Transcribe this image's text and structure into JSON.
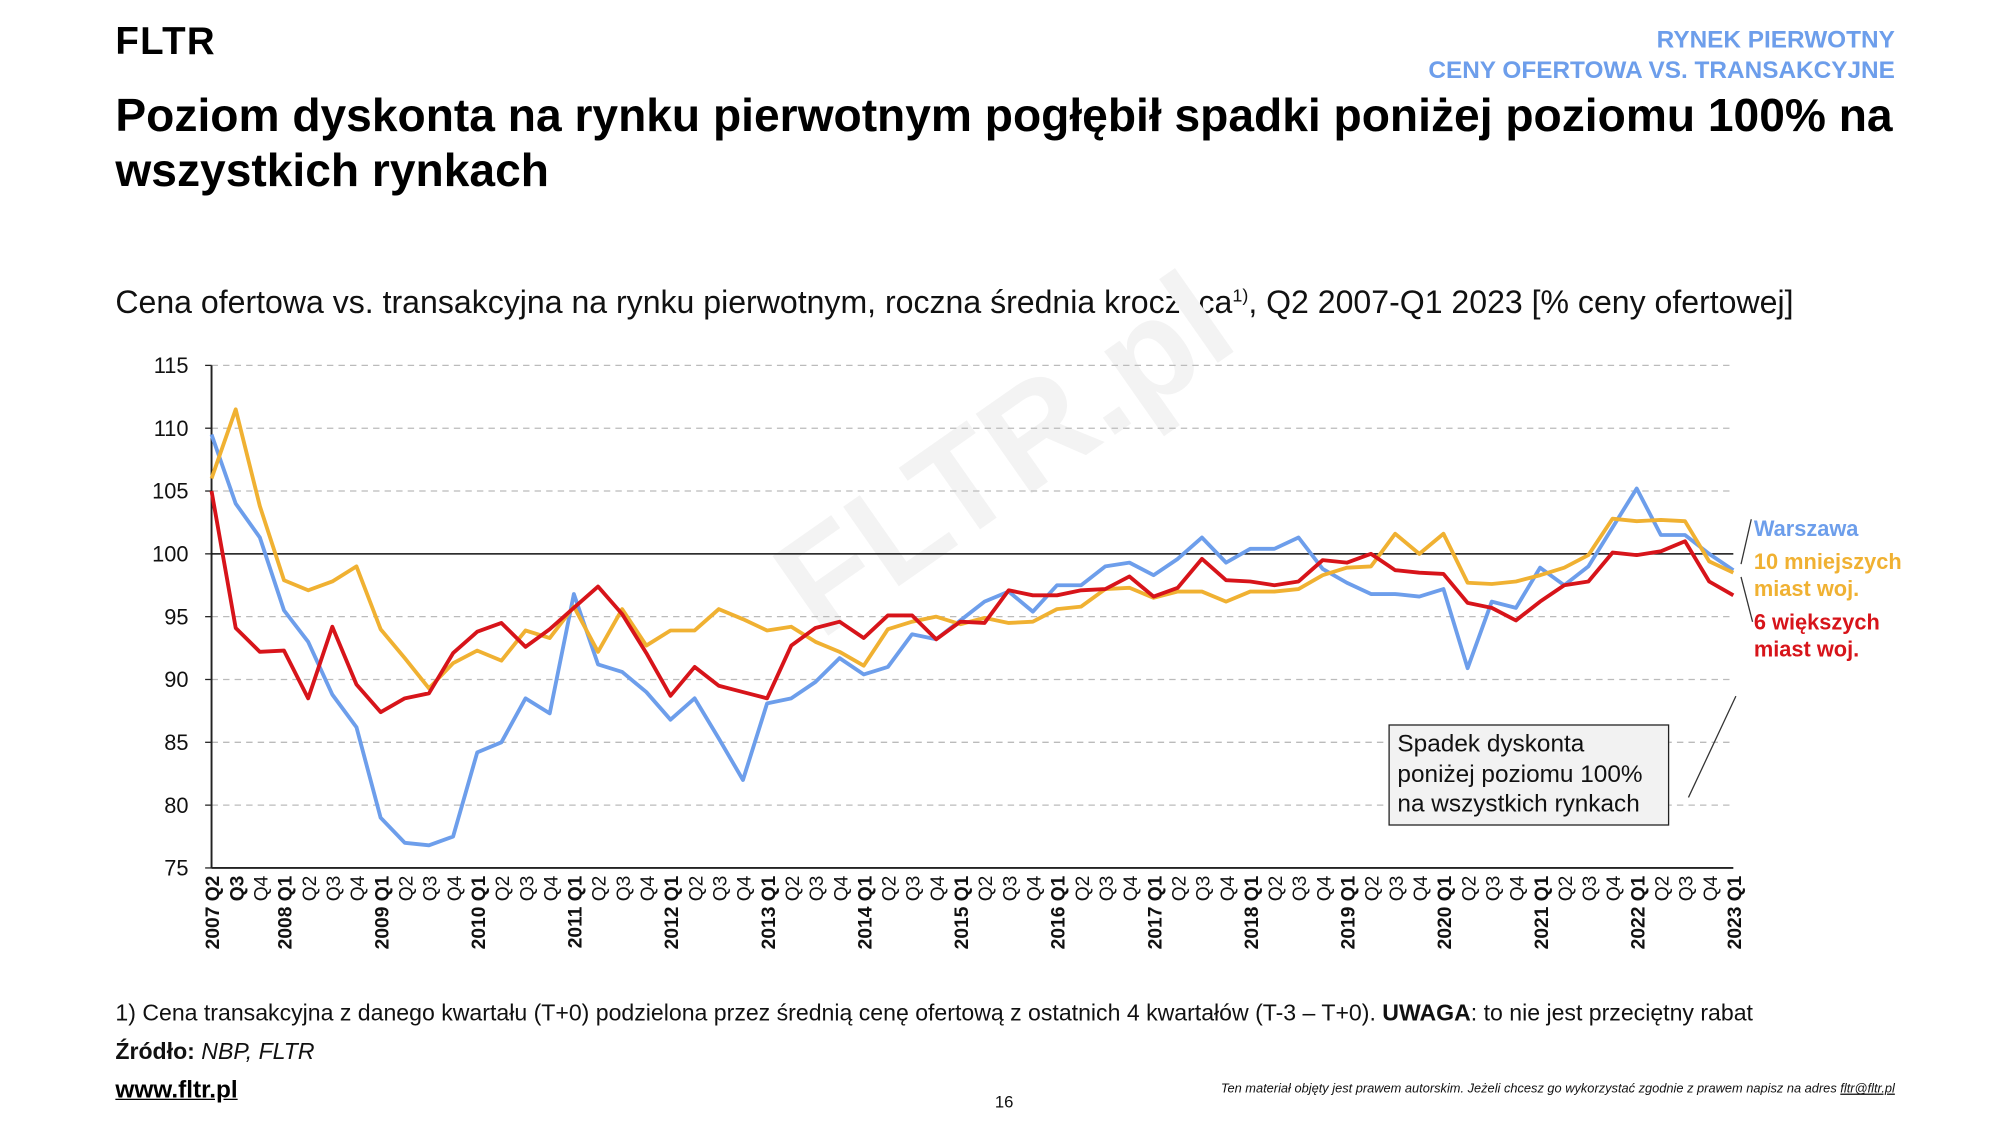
{
  "header": {
    "brand": "FLTR",
    "kicker_line1": "RYNEK PIERWOTNY",
    "kicker_line2": "CENY OFERTOWA VS. TRANSAKCYJNE",
    "title": "Poziom dyskonta na rynku pierwotnym pogłębił spadki poniżej poziomu 100% na wszystkich rynkach"
  },
  "footer": {
    "footnote_text": "1) Cena transakcyjna z danego kwartału (T+0) podzielona przez średnią cenę ofertową z ostatnich 4 kwartałów (T-3 – T+0).",
    "footnote_bold": "UWAGA",
    "footnote_rest": ": to nie jest przeciętny rabat",
    "source_label": "Źródło:",
    "source_value": "NBP, FLTR",
    "url": "www.fltr.pl",
    "page_number": "16",
    "copyright_text": "Ten materiał objęty jest prawem autorskim. Jeżeli chcesz go wykorzystać zgodnie z prawem napisz na adres",
    "copyright_email": "fltr@fltr.pl"
  },
  "chart_data": {
    "type": "line",
    "title": "Cena ofertowa vs. transakcyjna na rynku pierwotnym, roczna średnia krocząca",
    "title_sup": "1)",
    "title_suffix": ", Q2 2007-Q1 2023 [% ceny ofertowej]",
    "watermark": "FLTR.pl",
    "ylim": [
      75,
      115
    ],
    "yticks": [
      "75",
      "80",
      "85",
      "90",
      "95",
      "100",
      "105",
      "110",
      "115"
    ],
    "reference_line": 100,
    "grid": "horizontal-dashed",
    "legend_placement": "right",
    "x": [
      "2007 Q2",
      "Q3",
      "Q4",
      "2008 Q1",
      "Q2",
      "Q3",
      "Q4",
      "2009 Q1",
      "Q2",
      "Q3",
      "Q4",
      "2010 Q1",
      "Q2",
      "Q3",
      "Q4",
      "2011 Q1",
      "Q2",
      "Q3",
      "Q4",
      "2012 Q1",
      "Q2",
      "Q3",
      "Q4",
      "2013 Q1",
      "Q2",
      "Q3",
      "Q4",
      "2014 Q1",
      "Q2",
      "Q3",
      "Q4",
      "2015 Q1",
      "Q2",
      "Q3",
      "Q4",
      "2016 Q1",
      "Q2",
      "Q3",
      "Q4",
      "2017 Q1",
      "Q2",
      "Q3",
      "Q4",
      "2018 Q1",
      "Q2",
      "Q3",
      "Q4",
      "2019 Q1",
      "Q2",
      "Q3",
      "Q4",
      "2020 Q1",
      "Q2",
      "Q3",
      "Q4",
      "2021 Q1",
      "Q2",
      "Q3",
      "Q4",
      "2022 Q1",
      "Q2",
      "Q3",
      "Q4",
      "2023 Q1"
    ],
    "series": [
      {
        "name": "Warszawa",
        "color": "#6d9eeb",
        "values": [
          109.5,
          104,
          101.3,
          95.5,
          93,
          88.8,
          86.2,
          79,
          77,
          76.8,
          77.5,
          84.2,
          85,
          88.5,
          87.3,
          96.8,
          91.2,
          90.6,
          89,
          86.8,
          88.5,
          85.3,
          82,
          88.1,
          88.5,
          89.8,
          91.7,
          90.4,
          91,
          93.6,
          93.2,
          94.7,
          96.2,
          97,
          95.4,
          97.5,
          97.5,
          99,
          99.3,
          98.3,
          99.6,
          101.3,
          99.3,
          100.4,
          100.4,
          101.3,
          98.8,
          97.7,
          96.8,
          96.8,
          96.6,
          97.2,
          90.9,
          96.2,
          95.7,
          98.9,
          97.5,
          99,
          102.1,
          105.2,
          101.5,
          101.5,
          100,
          98.7
        ]
      },
      {
        "name": "10 mniejszych miast woj.",
        "line1": "10 mniejszych",
        "line2": "miast woj.",
        "color": "#f0b132",
        "values": [
          106,
          111.5,
          103.8,
          97.9,
          97.1,
          97.8,
          99,
          94,
          91.7,
          89.3,
          91.3,
          92.3,
          91.5,
          93.9,
          93.3,
          95.8,
          92.2,
          95.6,
          92.7,
          93.9,
          93.9,
          95.6,
          94.8,
          93.9,
          94.2,
          93,
          92.2,
          91.1,
          94,
          94.6,
          95,
          94.4,
          94.9,
          94.5,
          94.6,
          95.6,
          95.8,
          97.2,
          97.3,
          96.5,
          97,
          97,
          96.2,
          97,
          97,
          97.2,
          98.3,
          98.9,
          99,
          101.6,
          100,
          101.6,
          97.7,
          97.6,
          97.8,
          98.3,
          98.9,
          99.9,
          102.8,
          102.6,
          102.7,
          102.6,
          99.4,
          98.5
        ]
      },
      {
        "name": "6 większych miast woj.",
        "line1": "6 większych",
        "line2": "miast woj.",
        "color": "#d7141a",
        "values": [
          105,
          94.1,
          92.2,
          92.3,
          88.5,
          94.2,
          89.6,
          87.4,
          88.5,
          88.9,
          92.1,
          93.8,
          94.5,
          92.6,
          94,
          95.7,
          97.4,
          95.2,
          92.1,
          88.7,
          91,
          89.5,
          89,
          88.5,
          92.7,
          94.1,
          94.6,
          93.3,
          95.1,
          95.1,
          93.2,
          94.6,
          94.5,
          97.1,
          96.7,
          96.7,
          97.1,
          97.2,
          98.2,
          96.6,
          97.3,
          99.6,
          97.9,
          97.8,
          97.5,
          97.8,
          99.5,
          99.3,
          100,
          98.7,
          98.5,
          98.4,
          96.1,
          95.7,
          94.7,
          96.2,
          97.5,
          97.8,
          100.1,
          99.9,
          100.2,
          101,
          97.8,
          96.7
        ]
      }
    ],
    "annotation": "Spadek dyskonta poniżej poziomu 100% na wszystkich rynkach"
  }
}
